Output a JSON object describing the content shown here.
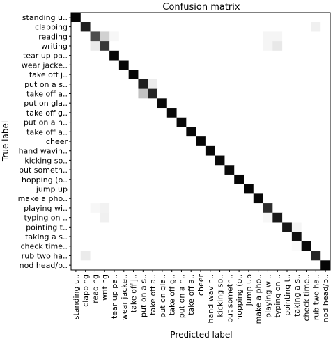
{
  "chart_data": {
    "type": "heatmap",
    "title": "Confusion matrix",
    "xlabel": "Predicted label",
    "ylabel": "True label",
    "labels": [
      "standing u..",
      "clapping",
      "reading",
      "writing",
      "tear up pa..",
      "wear jacke..",
      "take off j..",
      "put on a s..",
      "take off a..",
      "put on gla..",
      "take off g..",
      "put on a h..",
      "take off a..",
      "cheer",
      "hand wavin..",
      "kicking so..",
      "put someth..",
      "hopping (o..",
      "jump up",
      "make a pho..",
      "playing wi..",
      "typing on ..",
      "pointing t..",
      "taking a s..",
      "check time..",
      "rub two ha..",
      "nod head/b.."
    ],
    "diagonal": [
      0.98,
      0.88,
      0.7,
      0.78,
      0.98,
      0.98,
      0.98,
      0.88,
      0.85,
      0.96,
      0.97,
      0.97,
      0.97,
      0.98,
      0.97,
      0.96,
      0.96,
      0.98,
      0.98,
      0.97,
      0.82,
      0.9,
      0.91,
      0.93,
      0.96,
      0.85,
      0.98
    ],
    "off_diagonal": [
      {
        "row": 1,
        "col": 25,
        "value": 0.06
      },
      {
        "row": 2,
        "col": 3,
        "value": 0.18
      },
      {
        "row": 2,
        "col": 4,
        "value": 0.03
      },
      {
        "row": 2,
        "col": 20,
        "value": 0.04
      },
      {
        "row": 2,
        "col": 21,
        "value": 0.04
      },
      {
        "row": 3,
        "col": 2,
        "value": 0.08
      },
      {
        "row": 3,
        "col": 20,
        "value": 0.04
      },
      {
        "row": 3,
        "col": 21,
        "value": 0.09
      },
      {
        "row": 7,
        "col": 8,
        "value": 0.08
      },
      {
        "row": 8,
        "col": 7,
        "value": 0.24
      },
      {
        "row": 20,
        "col": 2,
        "value": 0.03
      },
      {
        "row": 20,
        "col": 3,
        "value": 0.05
      },
      {
        "row": 21,
        "col": 3,
        "value": 0.06
      },
      {
        "row": 21,
        "col": 20,
        "value": 0.03
      },
      {
        "row": 22,
        "col": 23,
        "value": 0.04
      },
      {
        "row": 25,
        "col": 1,
        "value": 0.08
      },
      {
        "row": 24,
        "col": 23,
        "value": 0.02
      }
    ],
    "value_range": [
      0,
      1
    ],
    "grid": false
  }
}
